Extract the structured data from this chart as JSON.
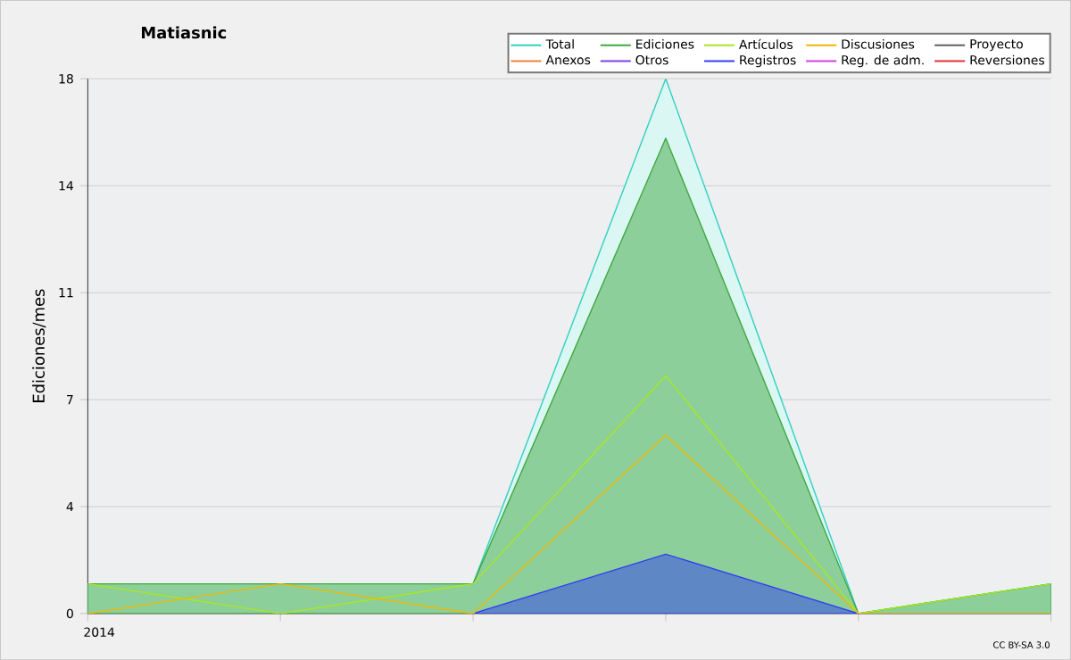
{
  "chart_data": {
    "type": "area",
    "title": "Matiasnic",
    "ylabel": "Ediciones/mes",
    "categories": [
      "2014",
      null,
      null,
      null,
      null,
      null
    ],
    "ylim": [
      0,
      18
    ],
    "yticks": [
      0,
      {
        "value": 3.6,
        "label": "4"
      },
      {
        "value": 7.2,
        "label": "7"
      },
      {
        "value": 10.8,
        "label": "11"
      },
      {
        "value": 14.4,
        "label": "14"
      },
      18
    ],
    "grid": "y",
    "legend": "top right",
    "annotations": [
      "CC BY-SA 3.0"
    ],
    "series": [
      {
        "name": "Total",
        "color": "#30d0c0",
        "values": [
          1,
          1,
          1,
          18,
          0,
          1
        ]
      },
      {
        "name": "Ediciones",
        "color": "#40a840",
        "values": [
          1,
          1,
          1,
          16,
          0,
          1
        ]
      },
      {
        "name": "Artículos",
        "type": "line",
        "color": "#a8e820",
        "values": [
          1,
          0,
          1,
          8,
          0,
          1
        ]
      },
      {
        "name": "Discusiones",
        "type": "line",
        "color": "#f0b800",
        "values": [
          0,
          1,
          0,
          6,
          0,
          0
        ]
      },
      {
        "name": "Proyecto",
        "type": "line",
        "color": "#606060",
        "values": [
          null,
          null,
          null,
          null,
          null,
          null
        ]
      },
      {
        "name": "Anexos",
        "type": "line",
        "color": "#f08040",
        "values": [
          null,
          null,
          null,
          null,
          null,
          null
        ]
      },
      {
        "name": "Otros",
        "type": "line",
        "color": "#8040e0",
        "values": [
          null,
          null,
          null,
          null,
          null,
          null
        ]
      },
      {
        "name": "Registros",
        "color": "#3040f0",
        "values": [
          null,
          null,
          0,
          2,
          0,
          null
        ]
      },
      {
        "name": "Reg. de adm.",
        "type": "line",
        "color": "#d040e0",
        "values": [
          null,
          null,
          null,
          null,
          null,
          null
        ]
      },
      {
        "name": "Reversiones",
        "type": "line",
        "color": "#e03030",
        "values": [
          null,
          null,
          null,
          null,
          null,
          null
        ]
      }
    ]
  }
}
